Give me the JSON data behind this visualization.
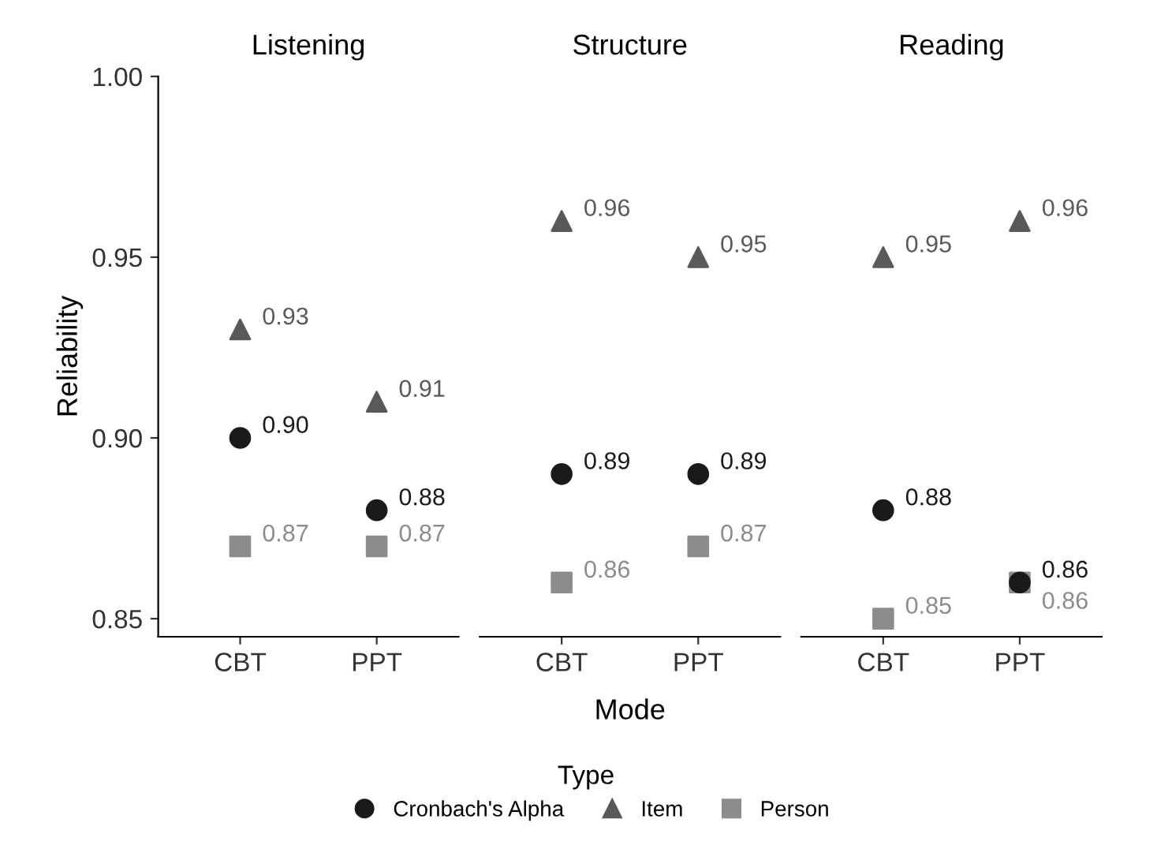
{
  "chart_data": [
    {
      "type": "scatter",
      "title": "Listening",
      "ylabel": "Reliability",
      "categories": [
        "CBT",
        "PPT"
      ],
      "ylim": [
        0.845,
        1.0
      ],
      "yticks": [
        {
          "value": 0.85,
          "label": "0.85"
        },
        {
          "value": 0.9,
          "label": "0.90"
        },
        {
          "value": 0.95,
          "label": "0.95"
        },
        {
          "value": 1.0,
          "label": "1.00"
        }
      ],
      "grid": false,
      "legend": "bottom",
      "legend_title": "Type",
      "series": [
        {
          "name": "Cronbach's Alpha",
          "color": "#1a1a1a",
          "marker": "circle",
          "values": [
            0.9,
            0.88
          ],
          "value_labels": [
            "0.90",
            "0.88"
          ]
        },
        {
          "name": "Item",
          "color": "#595959",
          "marker": "triangle",
          "values": [
            0.93,
            0.91
          ],
          "value_labels": [
            "0.93",
            "0.91"
          ]
        },
        {
          "name": "Person",
          "color": "#8c8c8c",
          "marker": "square",
          "values": [
            0.87,
            0.87
          ],
          "value_labels": [
            "0.87",
            "0.87"
          ]
        }
      ]
    },
    {
      "type": "scatter",
      "title": "Structure",
      "xlabel": "Mode",
      "categories": [
        "CBT",
        "PPT"
      ],
      "ylim": [
        0.845,
        1.0
      ],
      "tick_labels": "x",
      "grid": false,
      "series": [
        {
          "color": "#1a1a1a",
          "marker": "circle",
          "values": [
            0.89,
            0.89
          ],
          "value_labels": [
            "0.89",
            "0.89"
          ]
        },
        {
          "color": "#595959",
          "marker": "triangle",
          "values": [
            0.96,
            0.95
          ],
          "value_labels": [
            "0.96",
            "0.95"
          ]
        },
        {
          "color": "#8c8c8c",
          "marker": "square",
          "values": [
            0.86,
            0.87
          ],
          "value_labels": [
            "0.86",
            "0.87"
          ]
        }
      ]
    },
    {
      "type": "scatter",
      "title": "Reading",
      "categories": [
        "CBT",
        "PPT"
      ],
      "ylim": [
        0.845,
        1.0
      ],
      "tick_labels": "x",
      "grid": false,
      "series": [
        {
          "color": "#1a1a1a",
          "marker": "circle",
          "values": [
            0.88,
            0.86
          ],
          "value_labels": [
            "0.88",
            "0.86"
          ]
        },
        {
          "color": "#595959",
          "marker": "triangle",
          "values": [
            0.95,
            0.96
          ],
          "value_labels": [
            "0.95",
            "0.96"
          ]
        },
        {
          "color": "#8c8c8c",
          "marker": "square",
          "values": [
            0.85,
            0.86
          ],
          "value_labels": [
            "0.85",
            "0.86"
          ]
        }
      ]
    }
  ]
}
